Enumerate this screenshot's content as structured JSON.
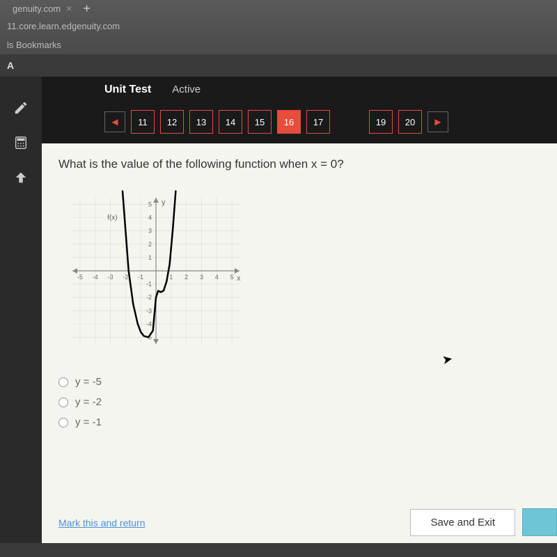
{
  "browser": {
    "tab_title": "genuity.com",
    "url": "11.core.learn.edgenuity.com",
    "bookmarks_label": "ls Bookmarks",
    "a_label": "A"
  },
  "header": {
    "title": "Unit Test",
    "status": "Active"
  },
  "nav": {
    "items": [
      "11",
      "12",
      "13",
      "14",
      "15",
      "16",
      "17"
    ],
    "items_right": [
      "19",
      "20"
    ],
    "current": "16",
    "prev_glyph": "◀",
    "next_glyph": "▶"
  },
  "question": {
    "text": "What is the value of the following function when x = 0?",
    "options": [
      {
        "label": "y = -5"
      },
      {
        "label": "y = -2"
      },
      {
        "label": "y = -1"
      }
    ]
  },
  "graph": {
    "type": "line",
    "xlim": [
      -5.5,
      5.5
    ],
    "ylim": [
      -5.5,
      5.5
    ],
    "xtick_step": 1,
    "ytick_step": 1,
    "x_axis_label": "x",
    "y_axis_label": "y",
    "fx_label": "f(x)",
    "grid_color": "#d8d8d8",
    "axis_color": "#888",
    "curve_color": "#000000",
    "curve_width": 2.5,
    "background_color": "#f5f5f0",
    "x_ticks": [
      -5,
      -4,
      -3,
      -2,
      -1,
      1,
      2,
      3,
      4,
      5
    ],
    "y_ticks": [
      -5,
      -4,
      -3,
      -2,
      -1,
      1,
      2,
      3,
      4,
      5
    ],
    "points": [
      [
        -2.2,
        6
      ],
      [
        -2.0,
        3
      ],
      [
        -1.8,
        0
      ],
      [
        -1.5,
        -2.5
      ],
      [
        -1.2,
        -4.0
      ],
      [
        -1.0,
        -4.6
      ],
      [
        -0.8,
        -4.9
      ],
      [
        -0.5,
        -5.0
      ],
      [
        -0.2,
        -4.5
      ],
      [
        0.0,
        -2.0
      ],
      [
        0.15,
        -1.5
      ],
      [
        0.3,
        -1.6
      ],
      [
        0.5,
        -1.5
      ],
      [
        0.7,
        -0.8
      ],
      [
        0.9,
        0.5
      ],
      [
        1.1,
        3
      ],
      [
        1.3,
        6
      ]
    ]
  },
  "footer": {
    "mark_link": "Mark this and return",
    "save_exit": "Save and Exit"
  },
  "colors": {
    "nav_border": "#e74c3c",
    "nav_current_bg": "#e74c3c",
    "panel_bg": "#f5f5f0",
    "next_btn": "#6ec5d6"
  }
}
